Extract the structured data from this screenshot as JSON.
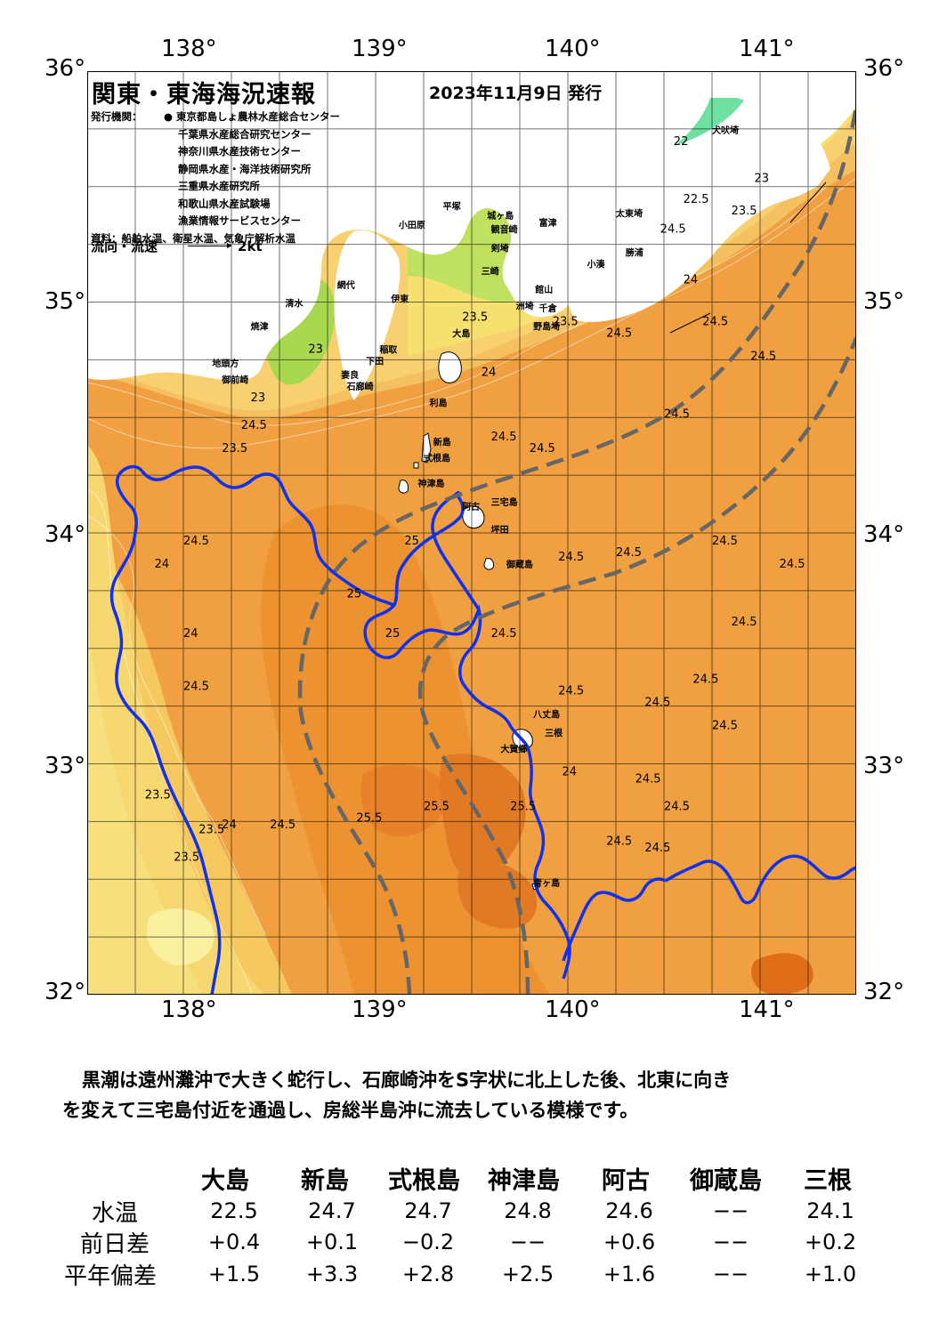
{
  "map": {
    "title": "関東・東海海況速報",
    "issue_date": "2023年11月9日 発行",
    "issuers_label": "発行機関：",
    "issuers": [
      "東京都島しょ農林水産総合センター",
      "千葉県水産総合研究センター",
      "神奈川県水産技術センター",
      "静岡県水産・海洋技術研究所",
      "三重県水産研究所",
      "和歌山県水産試験場",
      "漁業情報サービスセンター"
    ],
    "source": "資料：船舶水温、衛星水温、気象庁解析水温",
    "current_legend_label": "流向・流速",
    "current_legend_scale": "2kt",
    "lon_ticks": [
      "138°",
      "139°",
      "140°",
      "141°"
    ],
    "lat_ticks": [
      "36°",
      "35°",
      "34°",
      "33°",
      "32°"
    ],
    "place_labels": [
      {
        "name": "犬吠埼",
        "lon": 140.75,
        "lat": 35.73
      },
      {
        "name": "太東埼",
        "lon": 140.25,
        "lat": 35.37
      },
      {
        "name": "勝浦",
        "lon": 140.3,
        "lat": 35.2
      },
      {
        "name": "小湊",
        "lon": 140.1,
        "lat": 35.15
      },
      {
        "name": "富津",
        "lon": 139.85,
        "lat": 35.33
      },
      {
        "name": "洲埼",
        "lon": 139.73,
        "lat": 34.97
      },
      {
        "name": "千倉",
        "lon": 139.85,
        "lat": 34.96
      },
      {
        "name": "野島埼",
        "lon": 139.82,
        "lat": 34.88
      },
      {
        "name": "館山",
        "lon": 139.83,
        "lat": 35.04
      },
      {
        "name": "観音崎",
        "lon": 139.6,
        "lat": 35.3
      },
      {
        "name": "城ヶ島",
        "lon": 139.58,
        "lat": 35.36
      },
      {
        "name": "剣埼",
        "lon": 139.6,
        "lat": 35.22
      },
      {
        "name": "三崎",
        "lon": 139.55,
        "lat": 35.12
      },
      {
        "name": "平塚",
        "lon": 139.35,
        "lat": 35.4
      },
      {
        "name": "小田原",
        "lon": 139.12,
        "lat": 35.32
      },
      {
        "name": "大島",
        "lon": 139.4,
        "lat": 34.85
      },
      {
        "name": "伊東",
        "lon": 139.08,
        "lat": 35.0
      },
      {
        "name": "網代",
        "lon": 138.8,
        "lat": 35.06
      },
      {
        "name": "清水",
        "lon": 138.53,
        "lat": 34.98
      },
      {
        "name": "焼津",
        "lon": 138.35,
        "lat": 34.88
      },
      {
        "name": "御前崎",
        "lon": 138.2,
        "lat": 34.65
      },
      {
        "name": "地頭方",
        "lon": 138.15,
        "lat": 34.72
      },
      {
        "name": "稲取",
        "lon": 139.02,
        "lat": 34.78
      },
      {
        "name": "下田",
        "lon": 138.95,
        "lat": 34.73
      },
      {
        "name": "妻良",
        "lon": 138.82,
        "lat": 34.67
      },
      {
        "name": "石廊崎",
        "lon": 138.85,
        "lat": 34.62
      },
      {
        "name": "利島",
        "lon": 139.28,
        "lat": 34.55
      },
      {
        "name": "新島",
        "lon": 139.3,
        "lat": 34.38
      },
      {
        "name": "式根島",
        "lon": 139.25,
        "lat": 34.31
      },
      {
        "name": "神津島",
        "lon": 139.22,
        "lat": 34.2
      },
      {
        "name": "阿古",
        "lon": 139.45,
        "lat": 34.1
      },
      {
        "name": "三宅島",
        "lon": 139.6,
        "lat": 34.12
      },
      {
        "name": "坪田",
        "lon": 139.6,
        "lat": 34.0
      },
      {
        "name": "御蔵島",
        "lon": 139.68,
        "lat": 33.85
      },
      {
        "name": "八丈島",
        "lon": 139.82,
        "lat": 33.2
      },
      {
        "name": "三根",
        "lon": 139.88,
        "lat": 33.12
      },
      {
        "name": "大賀郷",
        "lon": 139.65,
        "lat": 33.05
      },
      {
        "name": "青ヶ島",
        "lon": 139.82,
        "lat": 32.47
      }
    ]
  },
  "summary_text_line1": "黒潮は遠州灘沖で大きく蛇行し、石廊崎沖をS字状に北上した後、北東に向き",
  "summary_text_line2": "を変えて三宅島付近を通過し、房総半島沖に流去している模様です。",
  "table": {
    "columns": [
      "大島",
      "新島",
      "式根島",
      "神津島",
      "阿古",
      "御蔵島",
      "三根"
    ],
    "rows": [
      {
        "label": "水温",
        "values": [
          "22.5",
          "24.7",
          "24.7",
          "24.8",
          "24.6",
          "−−",
          "24.1"
        ]
      },
      {
        "label": "前日差",
        "values": [
          "+0.4",
          "+0.1",
          "−0.2",
          "−−",
          "+0.6",
          "−−",
          "+0.2"
        ]
      },
      {
        "label": "平年偏差",
        "values": [
          "+1.5",
          "+3.3",
          "+2.8",
          "+2.5",
          "+1.6",
          "−−",
          "+1.0"
        ]
      }
    ]
  },
  "contour_labels": [
    {
      "t": "24.5",
      "lon": 138.3,
      "lat": 34.45
    },
    {
      "t": "23.5",
      "lon": 138.2,
      "lat": 34.35
    },
    {
      "t": "24",
      "lon": 137.85,
      "lat": 33.85
    },
    {
      "t": "24.5",
      "lon": 138.0,
      "lat": 33.95
    },
    {
      "t": "24",
      "lon": 138.0,
      "lat": 33.55
    },
    {
      "t": "24.5",
      "lon": 138.0,
      "lat": 33.32
    },
    {
      "t": "23.5",
      "lon": 137.8,
      "lat": 32.85
    },
    {
      "t": "23.5",
      "lon": 138.08,
      "lat": 32.7
    },
    {
      "t": "23.5",
      "lon": 137.95,
      "lat": 32.58
    },
    {
      "t": "24",
      "lon": 138.2,
      "lat": 32.72
    },
    {
      "t": "24.5",
      "lon": 138.45,
      "lat": 32.72
    },
    {
      "t": "25.5",
      "lon": 138.9,
      "lat": 32.75
    },
    {
      "t": "25.5",
      "lon": 139.25,
      "lat": 32.8
    },
    {
      "t": "25.5",
      "lon": 139.7,
      "lat": 32.8
    },
    {
      "t": "24.5",
      "lon": 139.6,
      "lat": 33.55
    },
    {
      "t": "24.5",
      "lon": 139.95,
      "lat": 33.3
    },
    {
      "t": "24.5",
      "lon": 140.4,
      "lat": 33.25
    },
    {
      "t": "24.5",
      "lon": 140.75,
      "lat": 33.15
    },
    {
      "t": "24.5",
      "lon": 140.35,
      "lat": 32.92
    },
    {
      "t": "24.5",
      "lon": 140.5,
      "lat": 32.8
    },
    {
      "t": "24.5",
      "lon": 140.2,
      "lat": 32.65
    },
    {
      "t": "24.5",
      "lon": 140.4,
      "lat": 32.62
    },
    {
      "t": "24",
      "lon": 139.97,
      "lat": 32.95
    },
    {
      "t": "24.5",
      "lon": 140.25,
      "lat": 33.9
    },
    {
      "t": "24.5",
      "lon": 140.75,
      "lat": 33.95
    },
    {
      "t": "24.5",
      "lon": 141.1,
      "lat": 33.85
    },
    {
      "t": "24.5",
      "lon": 140.85,
      "lat": 33.6
    },
    {
      "t": "24.5",
      "lon": 140.65,
      "lat": 33.35
    },
    {
      "t": "24.5",
      "lon": 139.6,
      "lat": 34.4
    },
    {
      "t": "24.5",
      "lon": 139.8,
      "lat": 34.35
    },
    {
      "t": "24.5",
      "lon": 140.5,
      "lat": 34.5
    },
    {
      "t": "24.5",
      "lon": 140.95,
      "lat": 34.75
    },
    {
      "t": "24.5",
      "lon": 140.7,
      "lat": 34.9
    },
    {
      "t": "24.5",
      "lon": 140.2,
      "lat": 34.85
    },
    {
      "t": "24",
      "lon": 139.55,
      "lat": 34.68
    },
    {
      "t": "23",
      "lon": 138.65,
      "lat": 34.78
    },
    {
      "t": "23",
      "lon": 138.35,
      "lat": 34.57
    },
    {
      "t": "23.5",
      "lon": 139.45,
      "lat": 34.92
    },
    {
      "t": "22",
      "lon": 140.55,
      "lat": 35.68
    },
    {
      "t": "23",
      "lon": 140.97,
      "lat": 35.52
    },
    {
      "t": "23.5",
      "lon": 140.85,
      "lat": 35.38
    },
    {
      "t": "24.5",
      "lon": 140.48,
      "lat": 35.3
    },
    {
      "t": "22.5",
      "lon": 140.6,
      "lat": 35.43
    },
    {
      "t": "24",
      "lon": 140.6,
      "lat": 35.08
    },
    {
      "t": "23.5",
      "lon": 139.92,
      "lat": 34.9
    },
    {
      "t": "24.5",
      "lon": 139.95,
      "lat": 33.88
    },
    {
      "t": "25",
      "lon": 138.85,
      "lat": 33.72
    },
    {
      "t": "25",
      "lon": 139.05,
      "lat": 33.55
    },
    {
      "t": "25",
      "lon": 139.15,
      "lat": 33.95
    }
  ]
}
